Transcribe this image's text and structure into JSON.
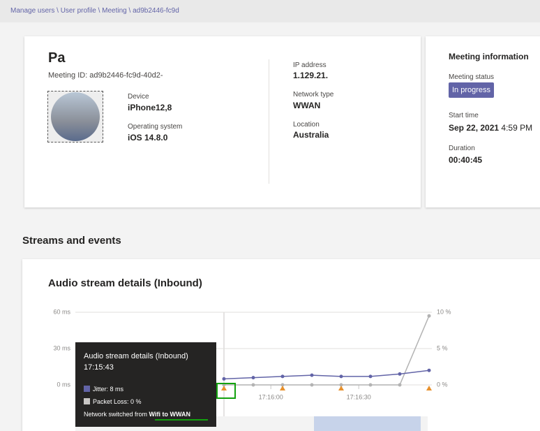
{
  "breadcrumb": "Manage users \\ User profile \\ Meeting \\ ad9b2446-fc9d",
  "participant": {
    "name": "Pa",
    "meeting_id": "Meeting ID: ad9b2446-fc9d-40d2-",
    "device_label": "Device",
    "device": "iPhone12,8",
    "os_label": "Operating system",
    "os": "iOS 14.8.0",
    "ip_label": "IP address",
    "ip": "1.129.21.",
    "network_label": "Network type",
    "network": "WWAN",
    "location_label": "Location",
    "location": "Australia"
  },
  "meeting_info": {
    "title": "Meeting information",
    "status_label": "Meeting status",
    "status": "In progress",
    "start_label": "Start time",
    "start": "Sep 22, 2021",
    "start_time": "4:59 PM",
    "duration_label": "Duration",
    "duration": "00:40:45"
  },
  "section_title": "Streams and events",
  "chart_data": {
    "type": "line",
    "title": "Audio stream details (Inbound)",
    "categories": [
      null,
      null,
      null,
      null,
      null,
      null,
      null,
      null
    ],
    "series": [
      {
        "color": "#6264a7",
        "values": [
          5,
          6,
          7,
          8,
          7,
          7,
          9,
          12
        ]
      },
      {
        "color": "#b3b3b3",
        "axis": "y2",
        "values": [
          0,
          0,
          0,
          0,
          0,
          0,
          0,
          9.5
        ]
      }
    ],
    "ylim": [
      0,
      60
    ],
    "yticks": [
      {
        "value": 0,
        "label": "0 ms"
      },
      {
        "value": 30,
        "label": "30 ms"
      },
      {
        "value": 60,
        "label": "60 ms"
      }
    ],
    "y2lim": [
      0,
      10
    ],
    "y2ticks": [
      {
        "value": 0,
        "label": "0 %"
      },
      {
        "value": 5,
        "label": "5 %"
      },
      {
        "value": 10,
        "label": "10 %"
      }
    ],
    "xticks": [
      {
        "value": 1.6,
        "label": "17:16:00"
      },
      {
        "value": 4.6,
        "label": "17:16:30"
      }
    ],
    "grid": true,
    "tooltip": {
      "title": "Audio stream details (Inbound)",
      "time": "17:15:43",
      "jitter": "Jitter: 8 ms",
      "packet_loss": "Packet Loss: 0 %",
      "event": [
        "Network switched from ",
        "Wifi",
        " to ",
        "WWAN"
      ]
    }
  }
}
